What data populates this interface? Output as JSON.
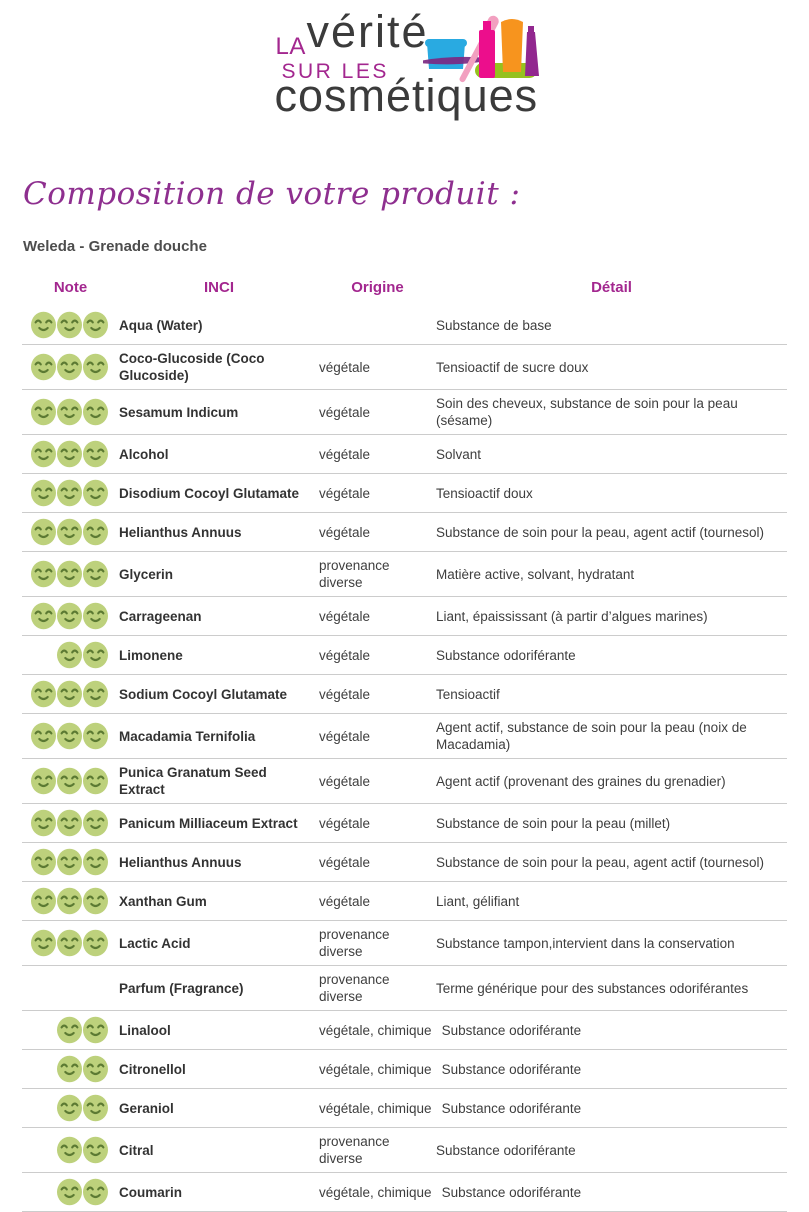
{
  "logo": {
    "la": "LA",
    "verite": "vérité",
    "sur_les": "SUR LES",
    "cosmetiques": "cosmétiques",
    "colors": {
      "magenta": "#a3278f",
      "dark": "#3b3b3b",
      "jar_blue": "#29aae1",
      "wand_pink": "#f2a0c0",
      "mascara_magenta": "#ec0e8c",
      "tube_orange": "#f7941e",
      "polish_purple": "#92278f",
      "base_green": "#95c11f",
      "swoosh_purple": "#7b2982"
    }
  },
  "page": {
    "title": "Composition de votre produit :",
    "product": "Weleda - Grenade douche"
  },
  "table": {
    "headers": {
      "note": "Note",
      "inci": "INCI",
      "origine": "Origine",
      "detail": "Détail"
    },
    "accent_color": "#a3278f",
    "smiley_fill": "#bdd17c",
    "smiley_stroke": "#5c7a33",
    "rows": [
      {
        "note": 3,
        "inci": "Aqua (Water)",
        "origine": "",
        "detail": "Substance de base"
      },
      {
        "note": 3,
        "inci": "Coco-Glucoside (Coco Glucoside)",
        "origine": "végétale",
        "detail": "Tensioactif de sucre doux"
      },
      {
        "note": 3,
        "inci": "Sesamum Indicum",
        "origine": "végétale",
        "detail": "Soin des cheveux, substance de soin pour la peau (sésame)"
      },
      {
        "note": 3,
        "inci": "Alcohol",
        "origine": "végétale",
        "detail": "Solvant"
      },
      {
        "note": 3,
        "inci": "Disodium Cocoyl Glutamate",
        "origine": "végétale",
        "detail": "Tensioactif doux"
      },
      {
        "note": 3,
        "inci": "Helianthus Annuus",
        "origine": "végétale",
        "detail": "Substance de soin pour la peau, agent actif (tournesol)"
      },
      {
        "note": 3,
        "inci": "Glycerin",
        "origine": "provenance\ndiverse",
        "detail": "Matière active, solvant, hydratant"
      },
      {
        "note": 3,
        "inci": "Carrageenan",
        "origine": "végétale",
        "detail": "Liant, épaississant (à partir d’algues marines)"
      },
      {
        "note": 2,
        "inci": "Limonene",
        "origine": "végétale",
        "detail": "Substance odoriférante"
      },
      {
        "note": 3,
        "inci": "Sodium Cocoyl Glutamate",
        "origine": "végétale",
        "detail": "Tensioactif"
      },
      {
        "note": 3,
        "inci": "Macadamia Ternifolia",
        "origine": "végétale",
        "detail": "Agent actif, substance de soin pour la peau (noix de Macadamia)"
      },
      {
        "note": 3,
        "inci": "Punica Granatum Seed Extract",
        "origine": "végétale",
        "detail": "Agent actif (provenant des graines du grenadier)"
      },
      {
        "note": 3,
        "inci": "Panicum Milliaceum Extract",
        "origine": "végétale",
        "detail": "Substance de soin pour la peau (millet)"
      },
      {
        "note": 3,
        "inci": "Helianthus Annuus",
        "origine": "végétale",
        "detail": "Substance de soin pour la peau, agent actif (tournesol)"
      },
      {
        "note": 3,
        "inci": "Xanthan Gum",
        "origine": "végétale",
        "detail": "Liant, gélifiant"
      },
      {
        "note": 3,
        "inci": "Lactic Acid",
        "origine": "provenance\ndiverse",
        "detail": "Substance tampon,intervient dans la conservation"
      },
      {
        "note": 0,
        "inci": "Parfum (Fragrance)",
        "origine": "provenance\ndiverse",
        "detail": "Terme générique pour des substances odoriférantes"
      },
      {
        "note": 2,
        "inci": "Linalool",
        "origine": "végétale, chimique",
        "detail": "Substance odoriférante"
      },
      {
        "note": 2,
        "inci": "Citronellol",
        "origine": "végétale, chimique",
        "detail": "Substance odoriférante"
      },
      {
        "note": 2,
        "inci": "Geraniol",
        "origine": "végétale, chimique",
        "detail": "Substance odoriférante"
      },
      {
        "note": 2,
        "inci": "Citral",
        "origine": "provenance\ndiverse",
        "detail": "Substance odoriférante"
      },
      {
        "note": 2,
        "inci": "Coumarin",
        "origine": "végétale, chimique",
        "detail": "Substance odoriférante"
      }
    ]
  }
}
